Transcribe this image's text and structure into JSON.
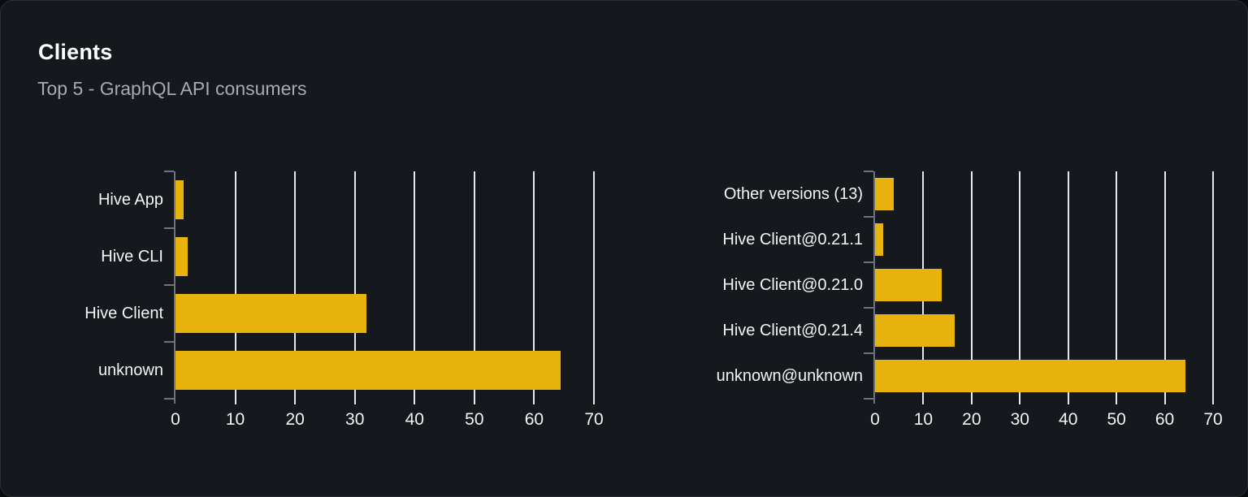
{
  "header": {
    "title": "Clients",
    "subtitle": "Top 5 - GraphQL API consumers"
  },
  "colors": {
    "pagebg": "#0a0c0f",
    "cardbg": "#15181c",
    "cardborder": "#2c2f36",
    "title": "#ffffff",
    "subtitle": "#a6abb2",
    "bar": "#e8b30d",
    "gridline": "#e6e9f0",
    "axis": "#6e737a",
    "label": "#f4f5f6",
    "ticklabel": "#f2f3f5"
  },
  "chart_data": [
    {
      "type": "bar",
      "orientation": "horizontal",
      "name": "clients-by-name",
      "title": "",
      "categories": [
        "Hive App",
        "Hive CLI",
        "Hive Client",
        "unknown"
      ],
      "values": [
        1.3,
        2,
        32,
        64.4
      ],
      "xlabel": "",
      "ylabel": "",
      "xlim": [
        0,
        70
      ],
      "xticks": [
        0,
        10,
        20,
        30,
        40,
        50,
        60,
        70
      ],
      "grid": true,
      "legend": false
    },
    {
      "type": "bar",
      "orientation": "horizontal",
      "name": "clients-by-version",
      "title": "",
      "categories": [
        "Other versions (13)",
        "Hive Client@0.21.1",
        "Hive Client@0.21.0",
        "Hive Client@0.21.4",
        "unknown@unknown"
      ],
      "values": [
        3.9,
        1.7,
        13.8,
        16.5,
        64.2
      ],
      "xlabel": "",
      "ylabel": "",
      "xlim": [
        0,
        70
      ],
      "xticks": [
        0,
        10,
        20,
        30,
        40,
        50,
        60,
        70
      ],
      "grid": true,
      "legend": false
    }
  ]
}
